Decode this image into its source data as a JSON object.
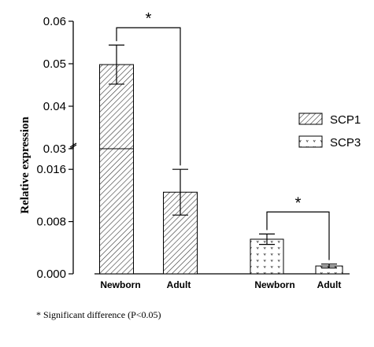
{
  "chart_data": {
    "type": "bar",
    "ylabel": "Relative expression",
    "y_axis_break": true,
    "ylim_lower": [
      0,
      0.02
    ],
    "ylim_upper": [
      0.03,
      0.06
    ],
    "lower_ticks": [
      "0.000",
      "0.008",
      "0.016"
    ],
    "upper_ticks": [
      "0.03",
      "0.04",
      "0.05",
      "0.06"
    ],
    "groups": [
      {
        "series": "SCP1",
        "bars": [
          {
            "category": "Newborn",
            "value": 0.0498,
            "error": 0.0046
          },
          {
            "category": "Adult",
            "value": 0.0125,
            "error": 0.0035
          }
        ],
        "significance": "*"
      },
      {
        "series": "SCP3",
        "bars": [
          {
            "category": "Newborn",
            "value": 0.0053,
            "error": 0.0008
          },
          {
            "category": "Adult",
            "value": 0.0012,
            "error": 0.0003
          }
        ],
        "significance": "*"
      }
    ],
    "legend": [
      {
        "name": "SCP1",
        "pattern": "diagonal-hatch"
      },
      {
        "name": "SCP3",
        "pattern": "dots"
      }
    ],
    "legend_position": "right",
    "footnote": "* Significant difference  (P<0.05)"
  }
}
